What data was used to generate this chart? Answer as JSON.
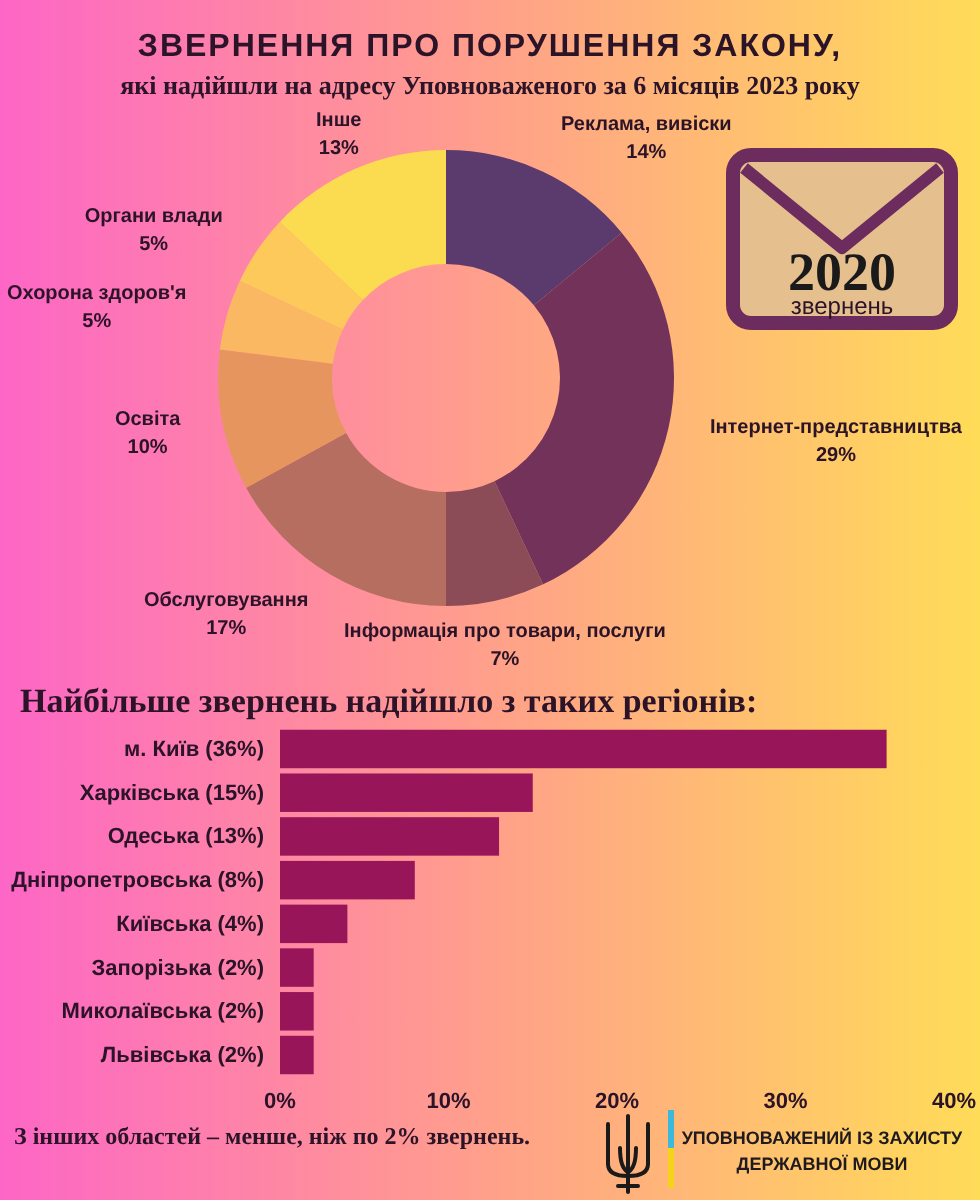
{
  "chart_data": [
    {
      "type": "donut",
      "title": "ЗВЕРНЕННЯ ПРО ПОРУШЕННЯ ЗАКОНУ,",
      "subtitle": "які надійшли на адресу Уповноваженого за 6 місяців 2023 року",
      "categories": [
        "Реклама, вивіски",
        "Інтернет-представництва",
        "Інформація про товари, послуги",
        "Обслуговування",
        "Освіта",
        "Охорона здоров'я",
        "Органи влади",
        "Інше"
      ],
      "values": [
        14,
        29,
        7,
        17,
        10,
        5,
        5,
        13
      ],
      "colors": [
        "#5b3b6d",
        "#73325a",
        "#8b4b57",
        "#b56e60",
        "#e7955f",
        "#fbb862",
        "#fdc95a",
        "#fbdc50"
      ],
      "value_labels": [
        "14%",
        "29%",
        "7%",
        "17%",
        "10%",
        "5%",
        "5%",
        "13%"
      ],
      "annotations": [
        "2020",
        "звернень"
      ]
    },
    {
      "type": "bar",
      "orientation": "horizontal",
      "title": "Найбільше звернень надійшло з таких регіонів:",
      "categories": [
        "м. Київ (36%)",
        "Харківська (15%)",
        "Одеська (13%)",
        "Дніпропетровська (8%)",
        "Київська (4%)",
        "Запорізька (2%)",
        "Миколаївська (2%)",
        "Львівська (2%)"
      ],
      "values": [
        36,
        15,
        13,
        8,
        4,
        2,
        2,
        2
      ],
      "color": "#99155a",
      "xlim": [
        0,
        40
      ],
      "xticks": [
        {
          "value": 0,
          "label": "0%"
        },
        {
          "value": 10,
          "label": "10%"
        },
        {
          "value": 20,
          "label": "20%"
        },
        {
          "value": 30,
          "label": "30%"
        },
        {
          "value": 40,
          "label": "40%"
        }
      ],
      "annotations": [
        "З інших областей – менше, ніж по 2% звернень.",
        "УПОВНОВАЖЕНИЙ ІЗ ЗАХИСТУ ДЕРЖАВНОЇ МОВИ"
      ]
    }
  ]
}
